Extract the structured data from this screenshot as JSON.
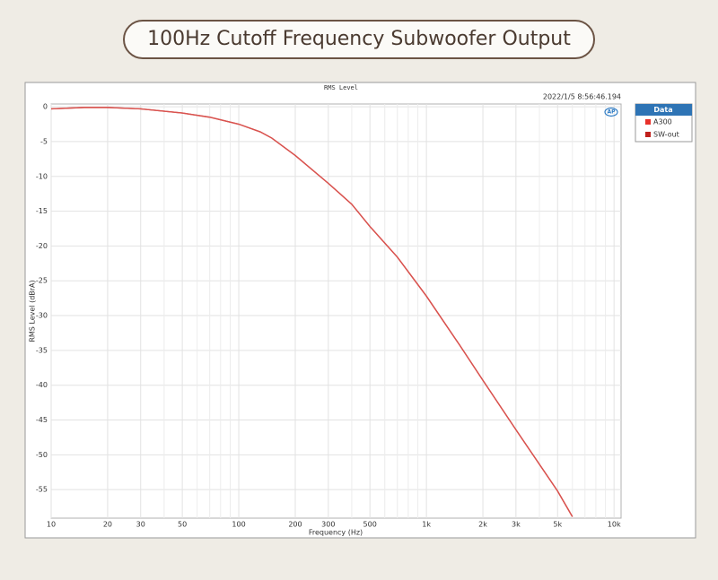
{
  "chart_data": {
    "type": "line",
    "title": "100Hz Cutoff Frequency Subwoofer Output",
    "plot_title": "RMS Level",
    "timestamp": "2022/1/5 8:56:46.194",
    "xlabel": "Frequency (Hz)",
    "ylabel": "RMS Level (dBrA)",
    "legend_title": "Data",
    "x": [
      10,
      15,
      20,
      30,
      50,
      70,
      100,
      130,
      150,
      200,
      300,
      400,
      500,
      700,
      1000,
      1500,
      2000,
      3000,
      5000,
      6000
    ],
    "series": [
      {
        "name": "A300",
        "color": "#e8302a",
        "line_color": "#d9534f",
        "values": [
          -0.3,
          -0.1,
          -0.1,
          -0.3,
          -0.9,
          -1.5,
          -2.5,
          -3.6,
          -4.5,
          -7,
          -11,
          -14,
          -17.2,
          -21.6,
          -27.2,
          -34.2,
          -39.3,
          -46.4,
          -55.2,
          -58.9
        ]
      },
      {
        "name": "SW-out",
        "color": "#c0201c",
        "line_color": "#d9534f",
        "values": [
          -0.3,
          -0.1,
          -0.1,
          -0.3,
          -0.9,
          -1.5,
          -2.5,
          -3.6,
          -4.5,
          -7,
          -11,
          -14,
          -17.2,
          -21.6,
          -27.2,
          -34.2,
          -39.3,
          -46.4,
          -55.2,
          -58.9
        ]
      }
    ],
    "xscale": "log",
    "xlim": [
      10,
      10900
    ],
    "ylim": [
      -59.1,
      0.4
    ],
    "xticks": [
      10,
      20,
      30,
      50,
      100,
      200,
      300,
      500,
      {
        "value": 1000,
        "label": "1k"
      },
      {
        "value": 2000,
        "label": "2k"
      },
      {
        "value": 3000,
        "label": "3k"
      },
      {
        "value": 5000,
        "label": "5k"
      },
      {
        "value": 10000,
        "label": "10k"
      }
    ],
    "x_minor_grid": [
      40,
      60,
      70,
      80,
      90,
      400,
      600,
      700,
      800,
      900,
      4000,
      6000,
      7000,
      8000,
      9000
    ],
    "yticks": [
      0,
      -5,
      -10,
      -15,
      -20,
      -25,
      -30,
      -35,
      -40,
      -45,
      -50,
      -55
    ],
    "grid": true
  }
}
